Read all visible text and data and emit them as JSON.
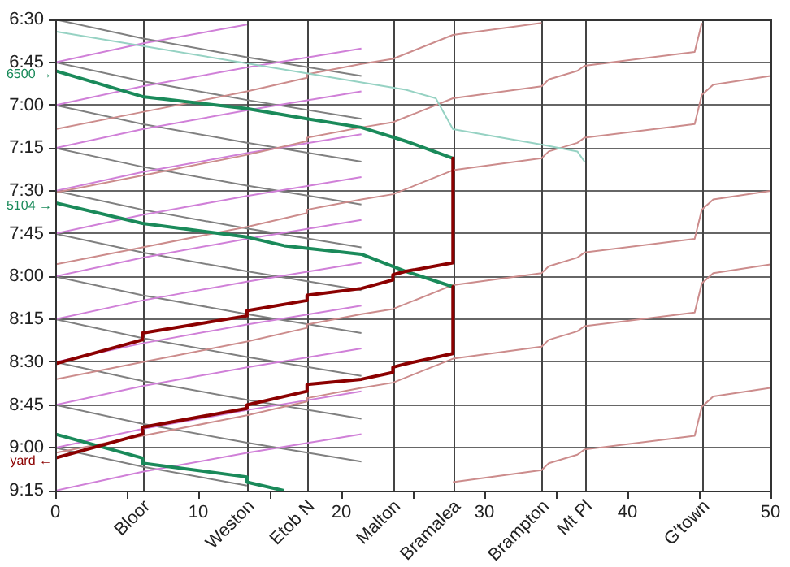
{
  "chart_data": {
    "type": "line",
    "xlim": [
      0,
      50
    ],
    "ylim": [
      9.25,
      6.5
    ],
    "xticks": [
      0,
      {
        "value": 5,
        "label": null
      },
      10,
      {
        "value": 15,
        "label": null
      },
      20,
      {
        "value": 25,
        "label": null
      },
      30,
      {
        "value": 35,
        "label": null
      },
      40,
      {
        "value": 45,
        "label": null
      },
      50
    ],
    "ref_lines": [
      {
        "axis": "x",
        "value": 6.1,
        "label": "Bloor"
      },
      {
        "axis": "x",
        "value": 13.4,
        "label": "Weston"
      },
      {
        "axis": "x",
        "value": 17.6,
        "label": "Etob N"
      },
      {
        "axis": "x",
        "value": 23.6,
        "label": "Malton"
      },
      {
        "axis": "x",
        "value": 27.8,
        "label": "Bramalea"
      },
      {
        "axis": "x",
        "value": 34.0,
        "label": "Brampton"
      },
      {
        "axis": "x",
        "value": 37.0,
        "label": "Mt Pl"
      },
      {
        "axis": "x",
        "value": 45.2,
        "label": "G'town"
      }
    ],
    "yticks": [
      {
        "value": 6.5,
        "label": "6:30"
      },
      {
        "value": 6.75,
        "label": "6:45"
      },
      {
        "value": 7.0,
        "label": "7:00"
      },
      {
        "value": 7.25,
        "label": "7:15"
      },
      {
        "value": 7.5,
        "label": "7:30"
      },
      {
        "value": 7.75,
        "label": "7:45"
      },
      {
        "value": 8.0,
        "label": "8:00"
      },
      {
        "value": 8.25,
        "label": "8:15"
      },
      {
        "value": 8.5,
        "label": "8:30"
      },
      {
        "value": 8.75,
        "label": "8:45"
      },
      {
        "value": 9.0,
        "label": "9:00"
      },
      {
        "value": 9.25,
        "label": "9:15"
      }
    ],
    "grid": "y",
    "marker": "none",
    "line_style": "solid",
    "series": [
      {
        "color": "#808080",
        "x": [
          0,
          6.1,
          13.4,
          21.4
        ],
        "values": [
          6.5,
          6.61,
          6.72,
          6.83
        ]
      },
      {
        "color": "#808080",
        "x": [
          0,
          6.1,
          13.4,
          21.4
        ],
        "values": [
          6.75,
          6.86,
          6.97,
          7.08
        ]
      },
      {
        "color": "#808080",
        "x": [
          0,
          6.1,
          13.4,
          21.4
        ],
        "values": [
          7.0,
          7.11,
          7.22,
          7.33
        ]
      },
      {
        "color": "#808080",
        "x": [
          0,
          6.1,
          13.4,
          21.4
        ],
        "values": [
          7.25,
          7.36,
          7.47,
          7.58
        ]
      },
      {
        "color": "#808080",
        "x": [
          0,
          6.1,
          13.4,
          21.4
        ],
        "values": [
          7.5,
          7.61,
          7.72,
          7.83
        ]
      },
      {
        "color": "#808080",
        "x": [
          0,
          6.1,
          13.4,
          21.4
        ],
        "values": [
          7.75,
          7.86,
          7.97,
          8.08
        ]
      },
      {
        "color": "#808080",
        "x": [
          0,
          6.1,
          13.4,
          21.4
        ],
        "values": [
          8.0,
          8.11,
          8.22,
          8.33
        ]
      },
      {
        "color": "#808080",
        "x": [
          0,
          6.1,
          13.4,
          21.4
        ],
        "values": [
          8.25,
          8.36,
          8.47,
          8.58
        ]
      },
      {
        "color": "#808080",
        "x": [
          0,
          6.1,
          13.4,
          21.4
        ],
        "values": [
          8.5,
          8.61,
          8.72,
          8.83
        ]
      },
      {
        "color": "#808080",
        "x": [
          0,
          6.1,
          13.4,
          21.4
        ],
        "values": [
          8.75,
          8.86,
          8.97,
          9.08
        ]
      },
      {
        "color": "#808080",
        "x": [
          0,
          6.1,
          13.4
        ],
        "values": [
          9.0,
          9.11,
          9.22
        ]
      },
      {
        "color": "#d080d8",
        "x": [
          13.4,
          6.1,
          0
        ],
        "values": [
          6.53,
          6.64,
          6.75
        ]
      },
      {
        "color": "#d080d8",
        "x": [
          21.4,
          13.4,
          6.1,
          0
        ],
        "values": [
          6.67,
          6.78,
          6.89,
          7.0
        ]
      },
      {
        "color": "#d080d8",
        "x": [
          21.4,
          13.4,
          6.1,
          0
        ],
        "values": [
          6.92,
          7.03,
          7.14,
          7.25
        ]
      },
      {
        "color": "#d080d8",
        "x": [
          21.4,
          13.4,
          6.1,
          0
        ],
        "values": [
          7.17,
          7.28,
          7.39,
          7.5
        ]
      },
      {
        "color": "#d080d8",
        "x": [
          21.4,
          13.4,
          6.1,
          0
        ],
        "values": [
          7.42,
          7.53,
          7.64,
          7.75
        ]
      },
      {
        "color": "#d080d8",
        "x": [
          21.4,
          13.4,
          6.1,
          0
        ],
        "values": [
          7.67,
          7.78,
          7.89,
          8.0
        ]
      },
      {
        "color": "#d080d8",
        "x": [
          21.4,
          13.4,
          6.1,
          0
        ],
        "values": [
          7.92,
          8.03,
          8.14,
          8.25
        ]
      },
      {
        "color": "#d080d8",
        "x": [
          21.4,
          13.4,
          6.1,
          0
        ],
        "values": [
          8.17,
          8.28,
          8.39,
          8.5
        ]
      },
      {
        "color": "#d080d8",
        "x": [
          21.4,
          13.4,
          6.1,
          0
        ],
        "values": [
          8.42,
          8.53,
          8.64,
          8.75
        ]
      },
      {
        "color": "#d080d8",
        "x": [
          21.4,
          13.4,
          6.1,
          0
        ],
        "values": [
          8.67,
          8.78,
          8.89,
          9.0
        ]
      },
      {
        "color": "#d080d8",
        "x": [
          21.4,
          13.4,
          6.1,
          0
        ],
        "values": [
          8.92,
          9.03,
          9.14,
          9.25
        ]
      },
      {
        "color": "#cc8c8c",
        "x": [
          34.0,
          27.8,
          23.6,
          21.4,
          17.6,
          17.6,
          13.4,
          6.1,
          0
        ],
        "values": [
          6.52,
          6.59,
          6.73,
          6.76,
          6.82,
          6.84,
          6.92,
          7.04,
          7.14
        ]
      },
      {
        "color": "#cc8c8c",
        "x": [
          45.2,
          44.7,
          37.0,
          36.5,
          34.5,
          34.0,
          27.8,
          23.6,
          21.4,
          17.6,
          17.6,
          13.4,
          6.1,
          0
        ],
        "values": [
          6.52,
          6.69,
          6.77,
          6.8,
          6.85,
          6.89,
          6.96,
          7.1,
          7.13,
          7.19,
          7.21,
          7.29,
          7.41,
          7.51
        ]
      },
      {
        "color": "#cc8c8c",
        "x": [
          50,
          46,
          45.2,
          44.7,
          37.0,
          36.5,
          34.5,
          34.0,
          27.8,
          23.6,
          21.4,
          17.6,
          17.6,
          13.4,
          6.1,
          0
        ],
        "values": [
          6.83,
          6.88,
          6.94,
          7.11,
          7.19,
          7.22,
          7.27,
          7.31,
          7.38,
          7.52,
          7.55,
          7.61,
          7.63,
          7.71,
          7.83,
          7.93
        ]
      },
      {
        "color": "#cc8c8c",
        "x": [
          50,
          46,
          45.2,
          44.7,
          37.0,
          36.5,
          34.5,
          34.0,
          27.8,
          23.6,
          21.4,
          17.6,
          17.6,
          13.4,
          6.1,
          0
        ],
        "values": [
          7.5,
          7.55,
          7.61,
          7.78,
          7.86,
          7.89,
          7.94,
          7.98,
          8.05,
          8.19,
          8.22,
          8.28,
          8.3,
          8.38,
          8.5,
          8.6
        ]
      },
      {
        "color": "#cc8c8c",
        "x": [
          50,
          46,
          45.2,
          44.7,
          37.0,
          36.5,
          34.5,
          34.0,
          27.8,
          23.6,
          21.4,
          17.6,
          17.6,
          13.4,
          6.1,
          0
        ],
        "values": [
          7.93,
          7.98,
          8.04,
          8.21,
          8.29,
          8.32,
          8.37,
          8.41,
          8.48,
          8.62,
          8.65,
          8.71,
          8.73,
          8.81,
          8.93,
          9.03
        ]
      },
      {
        "color": "#cc8c8c",
        "x": [
          50,
          46,
          45.2,
          44.7,
          37.0,
          36.5,
          34.5,
          34.0,
          27.8
        ],
        "values": [
          8.65,
          8.7,
          8.76,
          8.93,
          9.01,
          9.04,
          9.09,
          9.13,
          9.2
        ]
      },
      {
        "color": "#96d2c3",
        "x": [
          0,
          24.5,
          26.6,
          27.8,
          34.0,
          36.5,
          37.0
        ],
        "values": [
          6.57,
          6.91,
          6.96,
          7.14,
          7.23,
          7.27,
          7.33
        ]
      },
      {
        "name": "6500 →",
        "color": "#1a8a5a",
        "x": [
          0,
          6.1,
          13.4,
          17.6,
          21.4,
          24.5,
          27.8
        ],
        "values": [
          6.8,
          6.95,
          7.02,
          7.08,
          7.13,
          7.21,
          7.31
        ]
      },
      {
        "name": "5104 →",
        "color": "#1a8a5a",
        "x": [
          0,
          6.1,
          13.4,
          16.0,
          21.4,
          24.5,
          27.8
        ],
        "values": [
          7.57,
          7.69,
          7.77,
          7.82,
          7.87,
          7.97,
          8.06
        ]
      },
      {
        "color": "#1a8a5a",
        "x": [
          0,
          0,
          6.1,
          6.1,
          13.4,
          13.4,
          16.0
        ],
        "values": [
          8.51,
          8.92,
          9.06,
          9.09,
          9.17,
          9.2,
          9.25
        ]
      },
      {
        "color": "#8b0000",
        "x": [
          27.8,
          27.8,
          24.5,
          23.6,
          23.6,
          21.4,
          17.6,
          17.6,
          13.4,
          13.4,
          6.1,
          6.1,
          0
        ],
        "values": [
          7.31,
          7.92,
          7.97,
          7.99,
          8.02,
          8.07,
          8.11,
          8.14,
          8.2,
          8.23,
          8.33,
          8.37,
          8.51
        ]
      },
      {
        "color": "#8b0000",
        "x": [
          27.8,
          27.8,
          24.5,
          23.6,
          23.6,
          21.4,
          17.6,
          17.6,
          13.4,
          13.4,
          6.1,
          6.1,
          0
        ],
        "values": [
          8.06,
          8.45,
          8.51,
          8.53,
          8.56,
          8.6,
          8.63,
          8.67,
          8.75,
          8.77,
          8.88,
          8.92,
          9.06
        ],
        "name": "yard ←"
      }
    ]
  }
}
